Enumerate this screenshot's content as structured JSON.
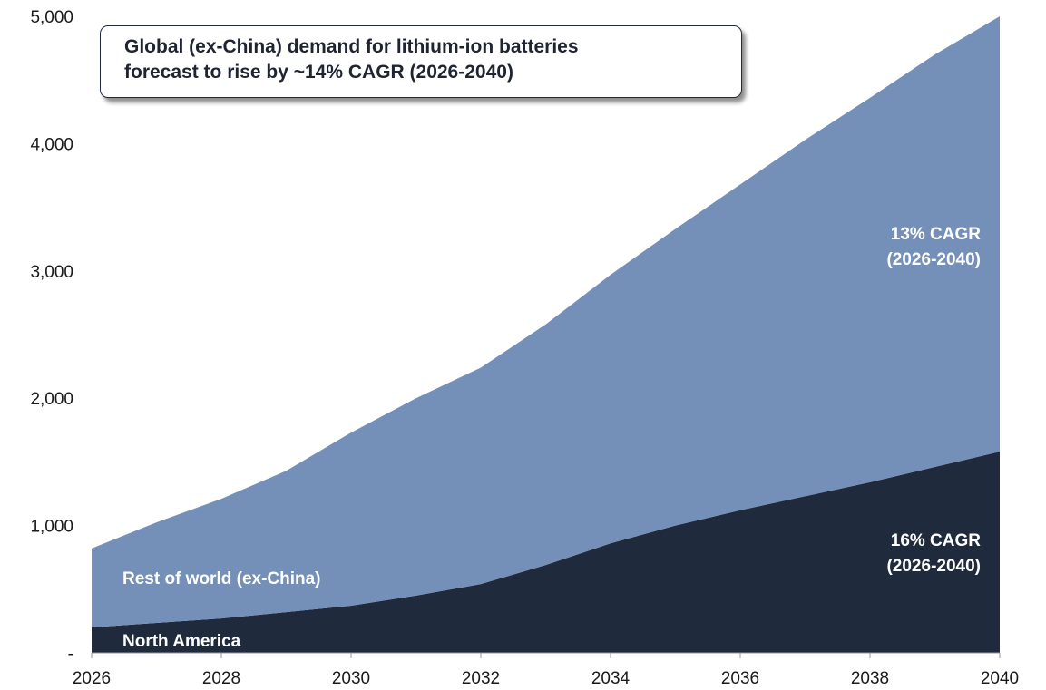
{
  "chart_data": {
    "type": "area",
    "stacked": true,
    "title_lines": [
      "Global (ex-China) demand for lithium-ion batteries",
      "forecast to rise by ~14% CAGR (2026-2040)"
    ],
    "x": [
      2026,
      2027,
      2028,
      2029,
      2030,
      2031,
      2032,
      2033,
      2034,
      2035,
      2036,
      2037,
      2038,
      2039,
      2040
    ],
    "x_ticks": [
      2026,
      2028,
      2030,
      2032,
      2034,
      2036,
      2038,
      2040
    ],
    "x_tick_labels": [
      "2026",
      "2028",
      "2030",
      "2032",
      "2034",
      "2036",
      "2038",
      "2040"
    ],
    "y_ticks": [
      0,
      1000,
      2000,
      3000,
      4000,
      5000
    ],
    "y_tick_labels": [
      "-",
      "1,000",
      "2,000",
      "3,000",
      "4,000",
      "5,000"
    ],
    "ylim": [
      0,
      5000
    ],
    "grid": false,
    "legend": "none",
    "series": [
      {
        "name": "North America",
        "color": "#1f2a3c",
        "values": [
          200,
          235,
          270,
          320,
          370,
          450,
          540,
          690,
          860,
          1000,
          1120,
          1230,
          1340,
          1460,
          1580
        ]
      },
      {
        "name": "Rest of world (ex-China)",
        "color": "#7490b9",
        "values": [
          620,
          790,
          940,
          1110,
          1360,
          1550,
          1700,
          1890,
          2110,
          2330,
          2560,
          2800,
          3020,
          3240,
          3420
        ]
      }
    ],
    "annotations": [
      {
        "text_lines": [
          "13% CAGR",
          "(2026-2040)"
        ]
      },
      {
        "text_lines": [
          "16% CAGR",
          "(2026-2040)"
        ]
      }
    ]
  }
}
